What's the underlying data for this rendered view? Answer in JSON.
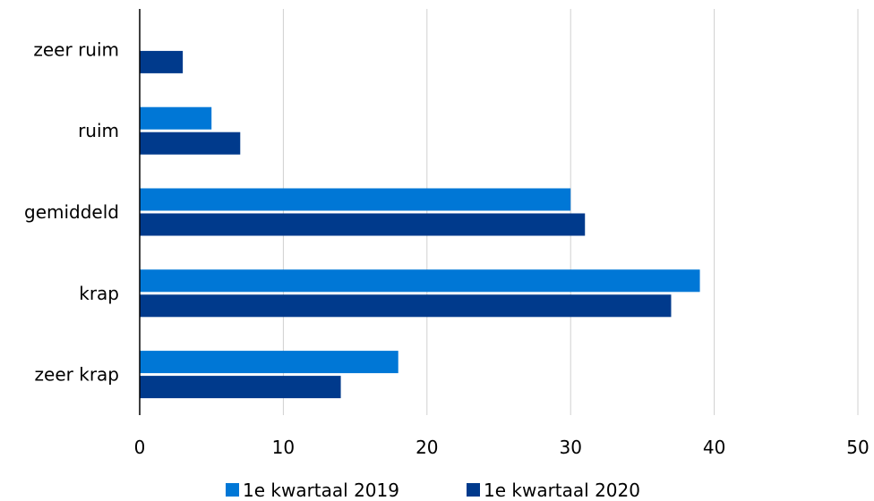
{
  "chart_data": {
    "type": "bar",
    "orientation": "horizontal",
    "categories": [
      "zeer ruim",
      "ruim",
      "gemiddeld",
      "krap",
      "zeer krap"
    ],
    "series": [
      {
        "name": "1e kwartaal 2019",
        "color": "#0077d6",
        "values": [
          0,
          5,
          30,
          39,
          18
        ]
      },
      {
        "name": "1e kwartaal 2020",
        "color": "#003a8c",
        "values": [
          3,
          7,
          31,
          37,
          14
        ]
      }
    ],
    "xlim": [
      0,
      50
    ],
    "xticks": [
      "0",
      "10",
      "20",
      "30",
      "40",
      "50"
    ],
    "grid": "vertical",
    "legend_position": "bottom",
    "title": "",
    "xlabel": "",
    "ylabel": ""
  }
}
